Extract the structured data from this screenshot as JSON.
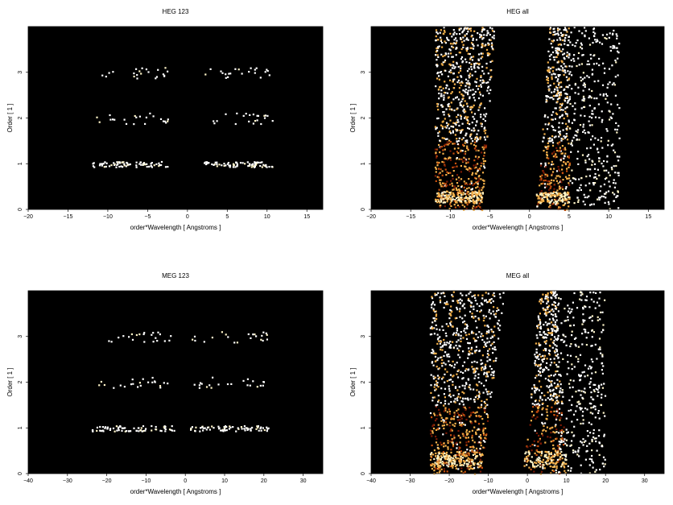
{
  "chart_data": [
    {
      "type": "heatmap",
      "title": "HEG 123",
      "xlabel": "order*Wavelength [ Angstroms ]",
      "ylabel": "Order [ 1 ]",
      "xlim": [
        -20,
        17
      ],
      "ylim": [
        0,
        4
      ],
      "xticks": [
        "−20",
        "−15",
        "−10",
        "−5",
        "0",
        "5",
        "10",
        "15"
      ],
      "xtick_values": [
        -20,
        -15,
        -10,
        -5,
        0,
        5,
        10,
        15
      ],
      "yticks": [
        "0",
        "1",
        "2",
        "3"
      ],
      "ytick_values": [
        0,
        1,
        2,
        3
      ],
      "background": "#000000",
      "colormap": [
        "#2a0500",
        "#7a1a05",
        "#c8500e",
        "#f3b04a",
        "#fff5c8",
        "#ffffff"
      ],
      "point_bands": [
        {
          "order": 1,
          "x_ranges": [
            [
              -12,
              -2.5
            ],
            [
              2,
              10.8
            ]
          ],
          "density": "high"
        },
        {
          "order": 2,
          "x_ranges": [
            [
              -12,
              -2.5
            ],
            [
              2,
              10.8
            ]
          ],
          "density": "low"
        },
        {
          "order": 3,
          "x_ranges": [
            [
              -12,
              -2.5
            ],
            [
              2,
              10.8
            ]
          ],
          "density": "low"
        }
      ]
    },
    {
      "type": "heatmap",
      "title": "HEG all",
      "xlabel": "order*Wavelength [ Angstroms ]",
      "ylabel": "Order [ 1 ]",
      "xlim": [
        -20,
        17
      ],
      "ylim": [
        0,
        4
      ],
      "xticks": [
        "−20",
        "−15",
        "−10",
        "−5",
        "0",
        "5",
        "10",
        "15"
      ],
      "xtick_values": [
        -20,
        -15,
        -10,
        -5,
        0,
        5,
        10,
        15
      ],
      "yticks": [
        "0",
        "1",
        "2",
        "3"
      ],
      "ytick_values": [
        0,
        1,
        2,
        3
      ],
      "background": "#000000",
      "colormap": [
        "#2a0500",
        "#7a1a05",
        "#c8500e",
        "#f3b04a",
        "#fff5c8",
        "#ffffff"
      ],
      "left_wedge": {
        "x_at_bottom": [
          -12,
          -6
        ],
        "x_at_top": [
          -12,
          -4.5
        ]
      },
      "right_wedge": {
        "x_at_bottom": [
          0.8,
          5
        ],
        "x_at_top": [
          2.5,
          5
        ]
      },
      "bright_band": {
        "order_range": [
          0.15,
          0.4
        ]
      }
    },
    {
      "type": "heatmap",
      "title": "MEG 123",
      "xlabel": "order*Wavelength [ Angstroms ]",
      "ylabel": "Order [ 1 ]",
      "xlim": [
        -40,
        35
      ],
      "ylim": [
        0,
        4
      ],
      "xticks": [
        "−40",
        "−30",
        "−20",
        "−10",
        "0",
        "10",
        "20",
        "30"
      ],
      "xtick_values": [
        -40,
        -30,
        -20,
        -10,
        0,
        10,
        20,
        30
      ],
      "yticks": [
        "0",
        "1",
        "2",
        "3"
      ],
      "ytick_values": [
        0,
        1,
        2,
        3
      ],
      "background": "#000000",
      "colormap": [
        "#2a0500",
        "#7a1a05",
        "#c8500e",
        "#f3b04a",
        "#fff5c8",
        "#ffffff"
      ],
      "point_bands": [
        {
          "order": 1,
          "x_ranges": [
            [
              -24,
              -3
            ],
            [
              1,
              21
            ]
          ],
          "density": "high"
        },
        {
          "order": 2,
          "x_ranges": [
            [
              -24,
              -3
            ],
            [
              1,
              21
            ]
          ],
          "density": "low"
        },
        {
          "order": 3,
          "x_ranges": [
            [
              -24,
              -3
            ],
            [
              1,
              21
            ]
          ],
          "density": "low"
        }
      ]
    },
    {
      "type": "heatmap",
      "title": "MEG all",
      "xlabel": "order*Wavelength [ Angstroms ]",
      "ylabel": "Order [ 1 ]",
      "xlim": [
        -40,
        35
      ],
      "ylim": [
        0,
        4
      ],
      "xticks": [
        "−40",
        "−30",
        "−20",
        "−10",
        "0",
        "10",
        "20",
        "30"
      ],
      "xtick_values": [
        -40,
        -30,
        -20,
        -10,
        0,
        10,
        20,
        30
      ],
      "yticks": [
        "0",
        "1",
        "2",
        "3"
      ],
      "ytick_values": [
        0,
        1,
        2,
        3
      ],
      "background": "#000000",
      "colormap": [
        "#2a0500",
        "#7a1a05",
        "#c8500e",
        "#f3b04a",
        "#fff5c8",
        "#ffffff"
      ],
      "left_wedge": {
        "x_at_bottom": [
          -25,
          -12
        ],
        "x_at_top": [
          -25,
          -6
        ]
      },
      "right_wedge": {
        "x_at_bottom": [
          -1,
          10
        ],
        "x_at_top": [
          3,
          7
        ]
      },
      "bright_band": {
        "order_range": [
          0.15,
          0.5
        ]
      }
    }
  ]
}
